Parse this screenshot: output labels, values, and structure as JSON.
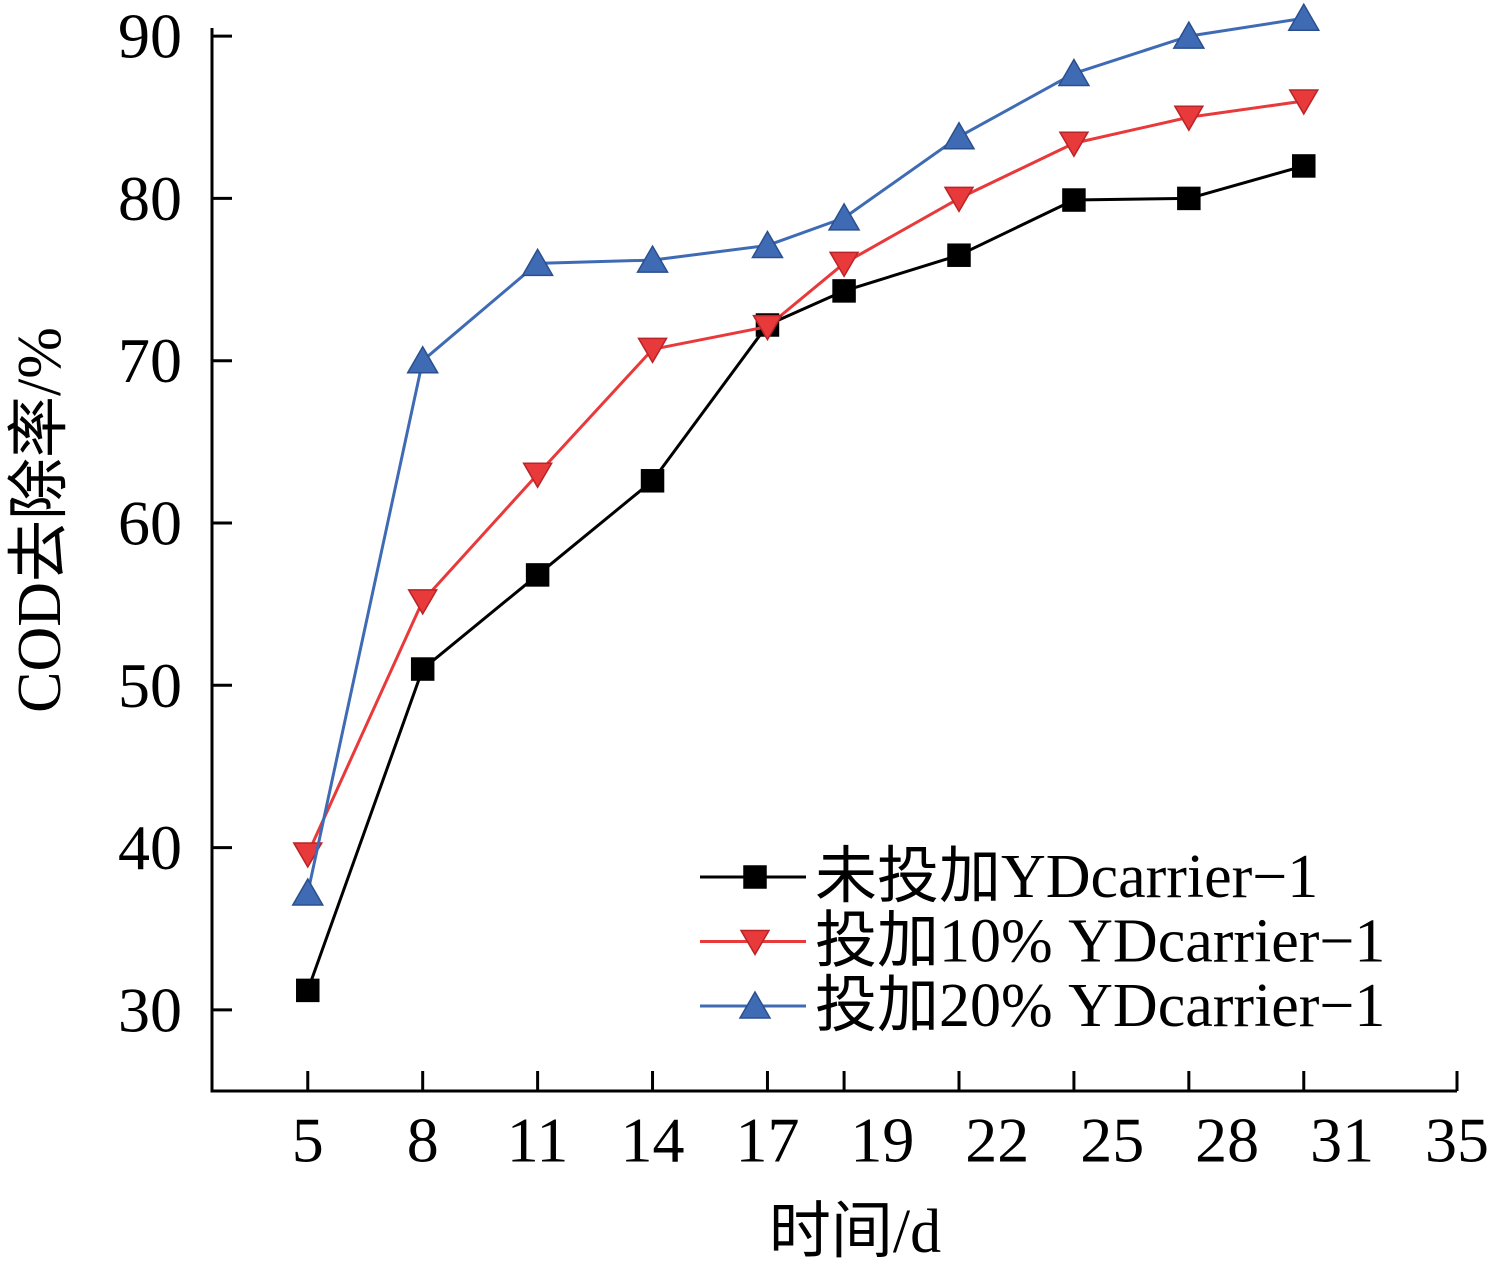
{
  "chart_data": {
    "type": "line",
    "xlabel": "时间/d",
    "ylabel": "COD去除率/%",
    "xlim": [
      2.5,
      35
    ],
    "ylim": [
      25,
      90.5
    ],
    "x_ticks": [
      5,
      8,
      11,
      14,
      17,
      19,
      22,
      25,
      28,
      31,
      35
    ],
    "y_ticks": [
      30,
      40,
      50,
      60,
      70,
      80,
      90
    ],
    "grid": false,
    "legend": {
      "position": "lower-right"
    },
    "x": [
      5,
      8,
      11,
      14,
      17,
      19,
      22,
      25,
      28,
      31
    ],
    "series": [
      {
        "name": "未投加YDcarrier−1",
        "color": "#000000",
        "marker_edge": "#000000",
        "marker": "square",
        "values": [
          31.2,
          51.0,
          56.8,
          62.6,
          72.2,
          74.3,
          76.5,
          79.9,
          80.0,
          82.0
        ]
      },
      {
        "name": "投加10% YDcarrier−1",
        "color": "#e8393b",
        "marker_edge": "#b82427",
        "marker": "triangle-down",
        "values": [
          39.6,
          55.2,
          63.0,
          70.7,
          72.1,
          76.0,
          80.0,
          83.4,
          85.0,
          86.0
        ]
      },
      {
        "name": "投加20% YDcarrier−1",
        "color": "#3f6bb5",
        "marker_edge": "#2b4f8e",
        "marker": "triangle-up",
        "values": [
          37.2,
          70.0,
          76.0,
          76.2,
          77.1,
          78.8,
          83.8,
          87.7,
          90.0,
          91.1
        ]
      }
    ]
  }
}
